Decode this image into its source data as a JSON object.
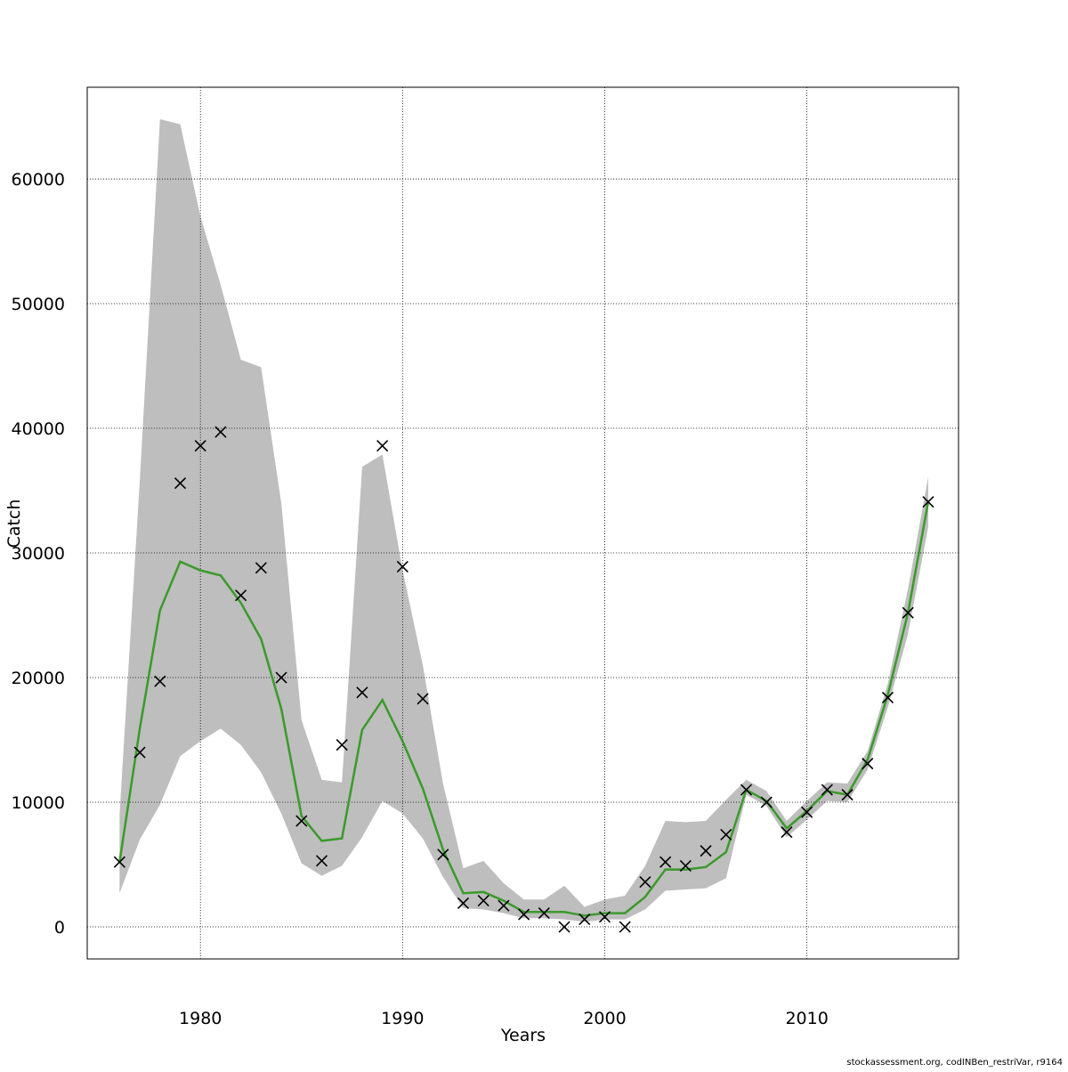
{
  "chart_data": {
    "type": "line",
    "xlabel": "Years",
    "ylabel": "Catch",
    "footer": "stockassessment.org, codINBen_restriVar, r9164",
    "x": [
      1976,
      1977,
      1978,
      1979,
      1980,
      1981,
      1982,
      1983,
      1984,
      1985,
      1986,
      1987,
      1988,
      1989,
      1990,
      1991,
      1992,
      1993,
      1994,
      1995,
      1996,
      1997,
      1998,
      1999,
      2000,
      2001,
      2002,
      2003,
      2004,
      2005,
      2006,
      2007,
      2008,
      2009,
      2010,
      2011,
      2012,
      2013,
      2014,
      2015,
      2016
    ],
    "band": {
      "color": "#bebebe",
      "upper": [
        9000,
        35800,
        64800,
        64400,
        57000,
        51500,
        45500,
        44900,
        34000,
        16600,
        11800,
        11600,
        36900,
        37900,
        28600,
        21000,
        11500,
        4700,
        5300,
        3500,
        2200,
        2200,
        3300,
        1600,
        2200,
        2500,
        4900,
        8500,
        8400,
        8500,
        10200,
        11800,
        10900,
        8500,
        10100,
        11600,
        11500,
        14100,
        19500,
        27100,
        36100
      ],
      "lower": [
        2700,
        7000,
        9800,
        13700,
        14900,
        15900,
        14600,
        12400,
        9100,
        5100,
        4100,
        4900,
        7200,
        10100,
        9100,
        7100,
        4000,
        1500,
        1400,
        1100,
        700,
        700,
        600,
        400,
        600,
        600,
        1400,
        2900,
        3000,
        3100,
        3900,
        10600,
        9700,
        7200,
        8600,
        10100,
        10000,
        12600,
        17600,
        23500,
        32100
      ]
    },
    "lines": [
      {
        "color": "#3a9a2a",
        "values": [
          5200,
          15900,
          25400,
          29300,
          28600,
          28200,
          26000,
          23100,
          17500,
          8900,
          6900,
          7100,
          15800,
          18200,
          14900,
          11100,
          6200,
          2700,
          2800,
          2100,
          1200,
          1200,
          1200,
          900,
          1100,
          1100,
          2400,
          4600,
          4600,
          4800,
          6000,
          11000,
          10100,
          7900,
          9300,
          10900,
          10600,
          13400,
          18600,
          25200,
          34100
        ]
      }
    ],
    "points": {
      "color": "#000000",
      "values": [
        5200,
        14000,
        19700,
        35600,
        38600,
        39700,
        26600,
        28800,
        20000,
        8500,
        5300,
        14600,
        18800,
        38600,
        28900,
        18300,
        5800,
        1900,
        2100,
        1700,
        1000,
        1100,
        0,
        600,
        800,
        0,
        3600,
        5200,
        4900,
        6100,
        7400,
        11000,
        10000,
        7600,
        9200,
        11000,
        10600,
        13100,
        18400,
        25200,
        34100
      ]
    },
    "xlim": [
      1974.4,
      2017.5
    ],
    "ylim": [
      -2570,
      67360
    ],
    "xticks": [
      1980,
      1990,
      2000,
      2010
    ],
    "yticks": [
      0,
      10000,
      20000,
      30000,
      40000,
      50000,
      60000
    ],
    "grid": true
  }
}
